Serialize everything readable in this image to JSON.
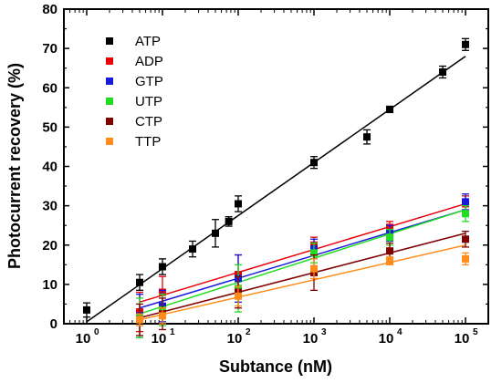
{
  "chart_data": {
    "type": "scatter",
    "xlabel": "Subtance (nM)",
    "ylabel": "Photocurrent recovery (%)",
    "x_scale": "log",
    "xlim": [
      0.5,
      200000
    ],
    "ylim": [
      0,
      80
    ],
    "x_ticks": [
      1,
      10,
      100,
      1000,
      10000,
      100000
    ],
    "x_tick_labels": [
      "10",
      "10",
      "10",
      "10",
      "10",
      "10"
    ],
    "x_tick_exponents": [
      "0",
      "1",
      "2",
      "3",
      "4",
      "5"
    ],
    "y_ticks": [
      0,
      10,
      20,
      30,
      40,
      50,
      60,
      70,
      80
    ],
    "y_tick_labels": [
      "0",
      "10",
      "20",
      "30",
      "40",
      "50",
      "60",
      "70",
      "80"
    ],
    "legend_position": "top-left",
    "series": [
      {
        "name": "ATP",
        "color": "#000000",
        "points": [
          {
            "x": 1,
            "y": 3.5,
            "err": 1.8
          },
          {
            "x": 5,
            "y": 10.5,
            "err": 2.0
          },
          {
            "x": 10,
            "y": 14.5,
            "err": 2.0
          },
          {
            "x": 25,
            "y": 19.0,
            "err": 2.0
          },
          {
            "x": 50,
            "y": 23.0,
            "err": 3.5
          },
          {
            "x": 75,
            "y": 26.0,
            "err": 1.2
          },
          {
            "x": 100,
            "y": 30.5,
            "err": 2.0
          },
          {
            "x": 1000,
            "y": 41.0,
            "err": 1.5
          },
          {
            "x": 5000,
            "y": 47.5,
            "err": 1.8
          },
          {
            "x": 10000,
            "y": 54.5,
            "err": 0.8
          },
          {
            "x": 50000,
            "y": 64.0,
            "err": 1.5
          },
          {
            "x": 100000,
            "y": 71.0,
            "err": 1.5
          }
        ],
        "fit": [
          [
            1,
            0.5
          ],
          [
            100000,
            68
          ]
        ]
      },
      {
        "name": "ADP",
        "color": "#e8000b",
        "points": [
          {
            "x": 5,
            "y": 3.0,
            "err": 5.0
          },
          {
            "x": 10,
            "y": 8.0,
            "err": 4.0
          },
          {
            "x": 100,
            "y": 12.5,
            "err": 5.0
          },
          {
            "x": 1000,
            "y": 20.0,
            "err": 2.0
          },
          {
            "x": 10000,
            "y": 24.5,
            "err": 1.5
          },
          {
            "x": 100000,
            "y": 30.5,
            "err": 2.0
          }
        ],
        "fit": [
          [
            5,
            5.5
          ],
          [
            100000,
            30.5
          ]
        ]
      },
      {
        "name": "GTP",
        "color": "#1a1adc",
        "points": [
          {
            "x": 5,
            "y": 2.0,
            "err": 5.5
          },
          {
            "x": 10,
            "y": 4.5,
            "err": 4.0
          },
          {
            "x": 100,
            "y": 11.5,
            "err": 6.0
          },
          {
            "x": 1000,
            "y": 19.0,
            "err": 2.5
          },
          {
            "x": 10000,
            "y": 23.0,
            "err": 2.0
          },
          {
            "x": 100000,
            "y": 31.0,
            "err": 2.0
          }
        ],
        "fit": [
          [
            5,
            4.0
          ],
          [
            100000,
            29.0
          ]
        ]
      },
      {
        "name": "UTP",
        "color": "#22dd22",
        "points": [
          {
            "x": 5,
            "y": 1.5,
            "err": 5.0
          },
          {
            "x": 10,
            "y": 3.5,
            "err": 4.0
          },
          {
            "x": 100,
            "y": 9.0,
            "err": 6.0
          },
          {
            "x": 1000,
            "y": 18.0,
            "err": 2.5
          },
          {
            "x": 10000,
            "y": 22.0,
            "err": 2.0
          },
          {
            "x": 100000,
            "y": 28.0,
            "err": 2.0
          }
        ],
        "fit": [
          [
            5,
            2.5
          ],
          [
            100000,
            29.0
          ]
        ]
      },
      {
        "name": "CTP",
        "color": "#800000",
        "points": [
          {
            "x": 5,
            "y": 1.0,
            "err": 4.0
          },
          {
            "x": 10,
            "y": 2.5,
            "err": 4.0
          },
          {
            "x": 100,
            "y": 8.0,
            "err": 4.0
          },
          {
            "x": 1000,
            "y": 13.0,
            "err": 4.5
          },
          {
            "x": 10000,
            "y": 18.5,
            "err": 2.0
          },
          {
            "x": 100000,
            "y": 21.5,
            "err": 2.0
          }
        ],
        "fit": [
          [
            5,
            1.5
          ],
          [
            100000,
            23.0
          ]
        ]
      },
      {
        "name": "TTP",
        "color": "#ff8c1a",
        "points": [
          {
            "x": 5,
            "y": 1.0,
            "err": 1.5
          },
          {
            "x": 10,
            "y": 2.0,
            "err": 2.0
          },
          {
            "x": 100,
            "y": 7.0,
            "err": 2.5
          },
          {
            "x": 1000,
            "y": 14.0,
            "err": 2.5
          },
          {
            "x": 10000,
            "y": 16.0,
            "err": 1.0
          },
          {
            "x": 100000,
            "y": 16.5,
            "err": 1.5
          }
        ],
        "fit": [
          [
            5,
            1.0
          ],
          [
            100000,
            20.0
          ]
        ]
      }
    ]
  }
}
